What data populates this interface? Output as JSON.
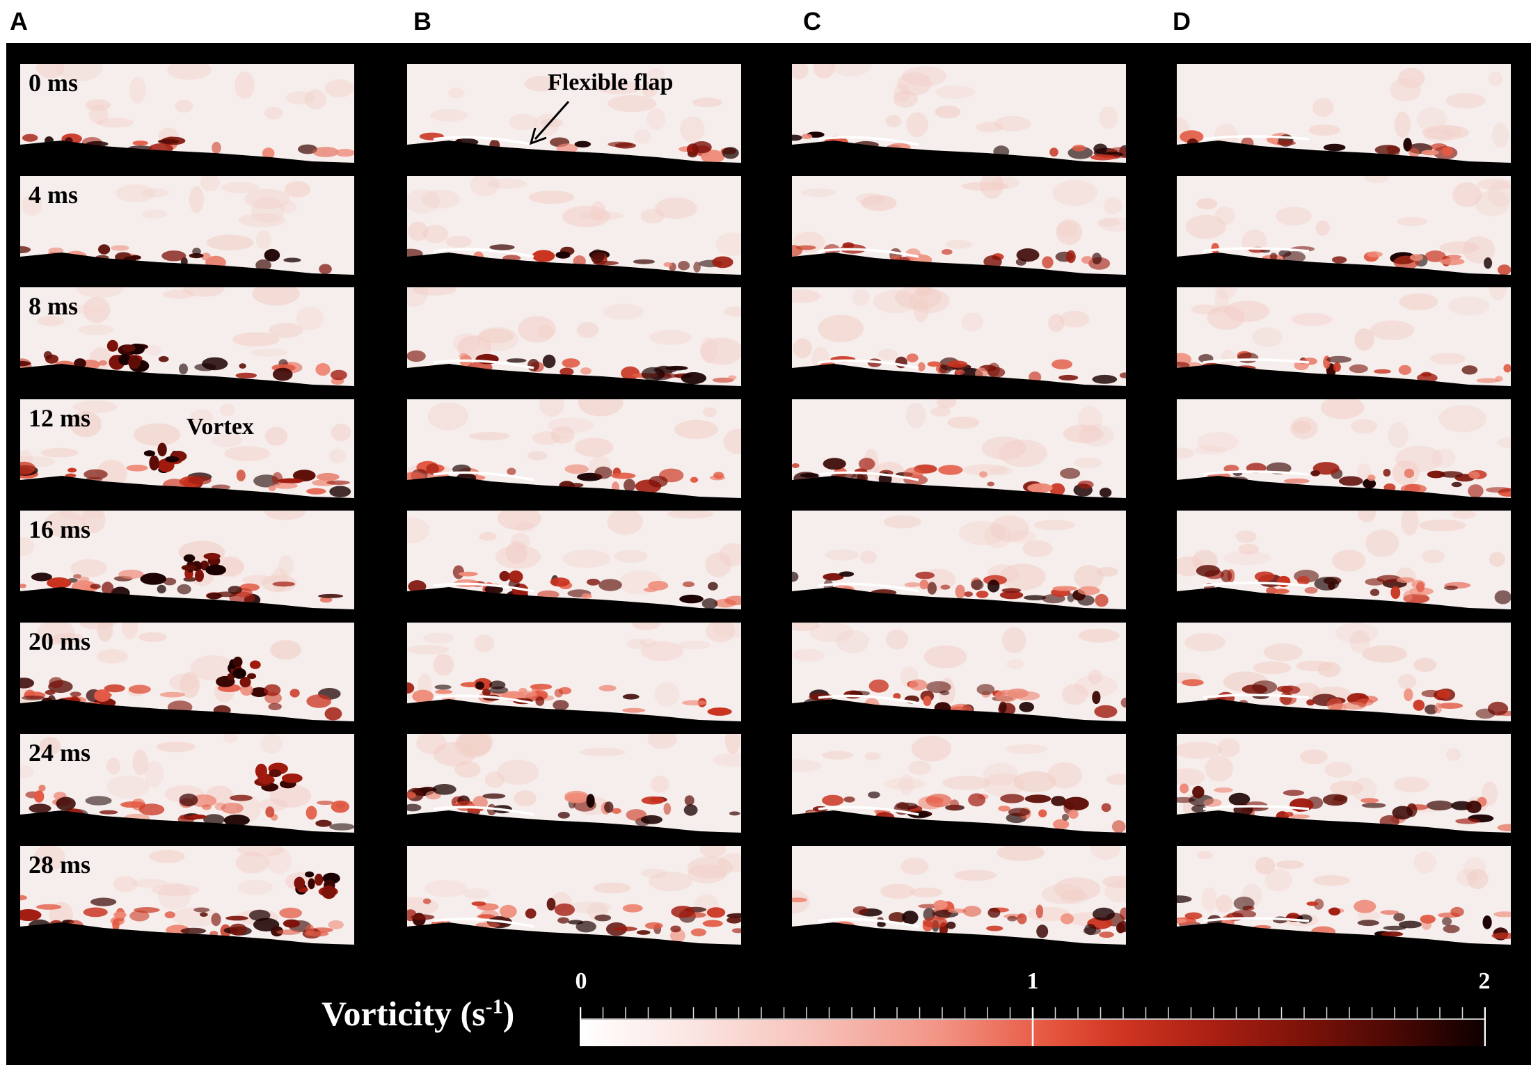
{
  "columns": [
    "A",
    "B",
    "C",
    "D"
  ],
  "time_labels": [
    "0 ms",
    "4 ms",
    "8 ms",
    "12 ms",
    "16 ms",
    "20 ms",
    "24 ms",
    "28 ms"
  ],
  "annotations": {
    "flexible_flap": "Flexible flap",
    "vortex": "Vortex"
  },
  "colorbar": {
    "title": "Vorticity (s",
    "title_sup": "-1",
    "title_end": ")",
    "tick_labels": [
      "0",
      "1",
      "2"
    ],
    "min": 0,
    "max": 2,
    "colors": [
      "#ffffff",
      "#f7c4bc",
      "#e6563f",
      "#a91f12",
      "#0c0000"
    ]
  }
}
